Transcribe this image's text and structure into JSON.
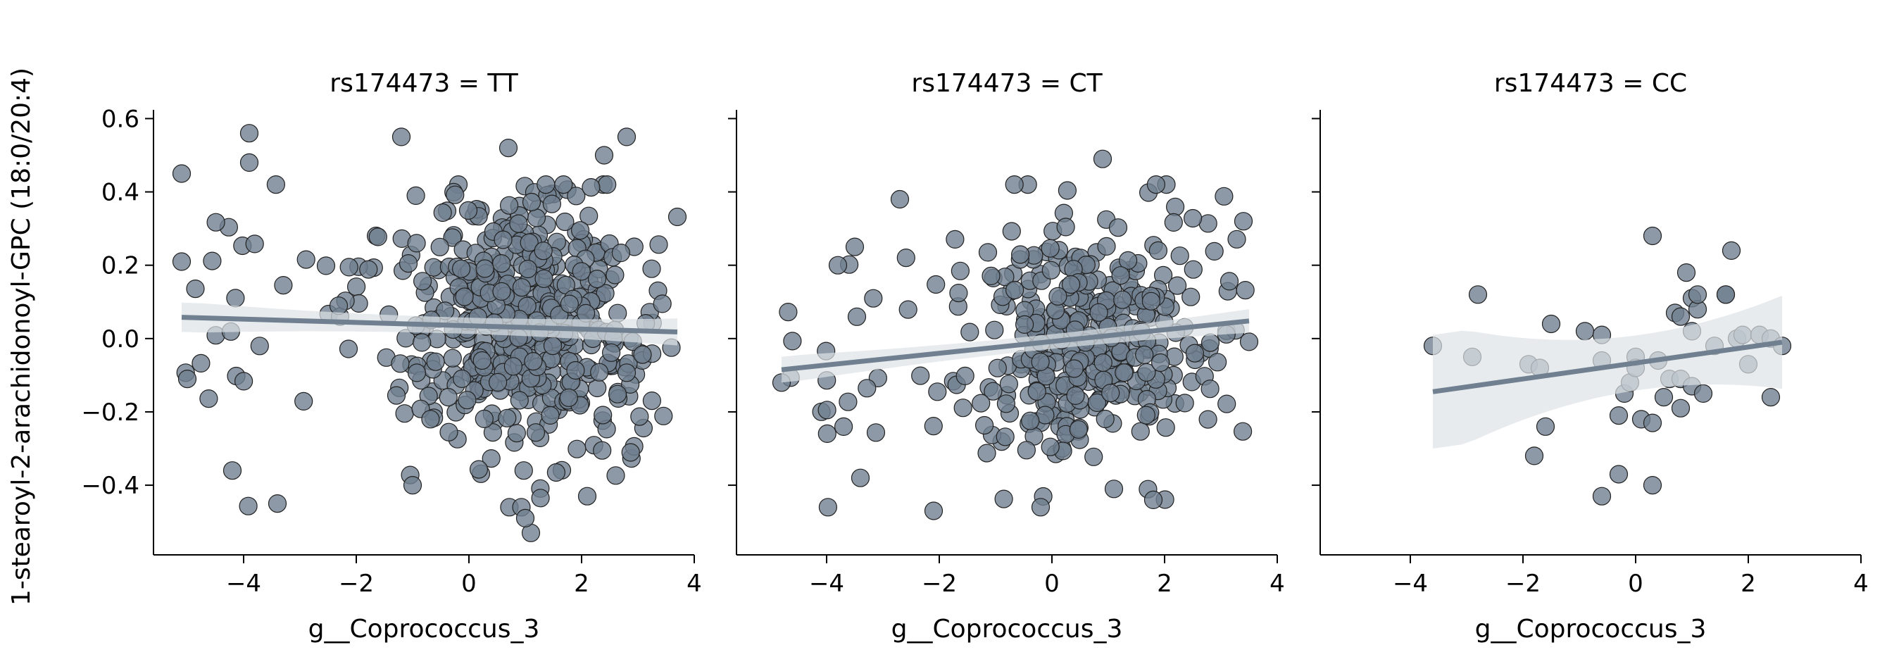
{
  "chart_data": {
    "type": "scatter",
    "ylabel": "1-stearoyl-2-arachidonoyl-GPC (18:0/20:4)",
    "xlim": [
      -5.6,
      4.0
    ],
    "ylim": [
      -0.59,
      0.62
    ],
    "x_ticks": [
      -4,
      -2,
      0,
      2,
      4
    ],
    "y_ticks": [
      -0.4,
      -0.2,
      0.0,
      0.2,
      0.4,
      0.6
    ],
    "y_tick_labels": [
      "−0.4",
      "−0.2",
      "0.0",
      "0.2",
      "0.4",
      "0.6"
    ],
    "x_tick_labels": [
      "−4",
      "−2",
      "0",
      "2",
      "4"
    ],
    "colors": {
      "point": "#708090",
      "edge": "#222222",
      "line": "#708090",
      "band": "#dde2e7"
    },
    "panels": [
      {
        "title": "rs174473 = TT",
        "xlabel": "g__Coprococcus_3",
        "n_points": 520,
        "x_range": [
          -5.1,
          3.7
        ],
        "cluster": [
          0.9,
          0.85
        ],
        "noise_sd": 0.18,
        "regression": {
          "x": [
            -5.1,
            3.7
          ],
          "y": [
            0.058,
            0.018
          ]
        },
        "band_width": [
          0.04,
          0.022
        ],
        "outliers": [
          [
            -5.1,
            0.45
          ],
          [
            -5.1,
            0.21
          ],
          [
            -3.9,
            0.56
          ],
          [
            -3.9,
            0.48
          ],
          [
            -1.2,
            0.55
          ],
          [
            2.8,
            0.55
          ],
          [
            1.1,
            -0.53
          ],
          [
            1.0,
            -0.49
          ],
          [
            -3.4,
            -0.45
          ],
          [
            2.1,
            -0.43
          ],
          [
            -1.0,
            -0.4
          ],
          [
            -4.2,
            -0.36
          ],
          [
            -5.0,
            -0.11
          ],
          [
            0.7,
            0.52
          ],
          [
            2.4,
            0.5
          ]
        ]
      },
      {
        "title": "rs174473 = CT",
        "xlabel": "g__Coprococcus_3",
        "n_points": 380,
        "x_range": [
          -4.8,
          3.5
        ],
        "cluster": [
          0.7,
          0.8
        ],
        "noise_sd": 0.17,
        "regression": {
          "x": [
            -4.8,
            3.5
          ],
          "y": [
            -0.085,
            0.048
          ]
        },
        "band_width": [
          0.035,
          0.02
        ],
        "outliers": [
          [
            -2.7,
            0.38
          ],
          [
            3.4,
            0.32
          ],
          [
            0.9,
            0.49
          ],
          [
            -2.1,
            -0.47
          ],
          [
            -0.2,
            -0.46
          ],
          [
            1.1,
            -0.41
          ],
          [
            1.8,
            -0.44
          ],
          [
            -3.4,
            -0.38
          ],
          [
            -4.8,
            -0.12
          ],
          [
            -3.8,
            0.2
          ],
          [
            -3.5,
            0.25
          ]
        ]
      },
      {
        "title": "rs174473 = CC",
        "xlabel": "g__Coprococcus_3",
        "points": [
          [
            -3.6,
            -0.02
          ],
          [
            -2.9,
            -0.05
          ],
          [
            -2.8,
            0.12
          ],
          [
            -1.9,
            -0.07
          ],
          [
            -1.8,
            -0.32
          ],
          [
            -1.7,
            -0.08
          ],
          [
            -1.6,
            -0.24
          ],
          [
            -1.5,
            0.04
          ],
          [
            -0.9,
            0.02
          ],
          [
            -0.6,
            0.01
          ],
          [
            -0.6,
            -0.06
          ],
          [
            -0.6,
            -0.43
          ],
          [
            -0.3,
            -0.21
          ],
          [
            -0.3,
            -0.37
          ],
          [
            -0.2,
            -0.15
          ],
          [
            -0.1,
            -0.12
          ],
          [
            0.0,
            -0.05
          ],
          [
            0.0,
            -0.08
          ],
          [
            0.1,
            -0.22
          ],
          [
            0.3,
            0.28
          ],
          [
            0.3,
            -0.23
          ],
          [
            0.3,
            -0.4
          ],
          [
            0.4,
            -0.06
          ],
          [
            0.5,
            -0.16
          ],
          [
            0.6,
            -0.11
          ],
          [
            0.7,
            0.07
          ],
          [
            0.8,
            0.06
          ],
          [
            0.8,
            -0.11
          ],
          [
            0.8,
            -0.19
          ],
          [
            0.9,
            0.18
          ],
          [
            1.0,
            0.11
          ],
          [
            1.0,
            0.02
          ],
          [
            1.0,
            -0.13
          ],
          [
            1.1,
            0.08
          ],
          [
            1.1,
            0.12
          ],
          [
            1.2,
            -0.15
          ],
          [
            1.4,
            -0.02
          ],
          [
            1.6,
            0.12
          ],
          [
            1.6,
            0.12
          ],
          [
            1.7,
            0.24
          ],
          [
            1.8,
            0.0
          ],
          [
            1.9,
            0.01
          ],
          [
            2.0,
            -0.07
          ],
          [
            2.2,
            0.01
          ],
          [
            2.4,
            0.0
          ],
          [
            2.4,
            -0.16
          ],
          [
            2.6,
            -0.02
          ]
        ],
        "regression": {
          "x": [
            -3.6,
            2.6
          ],
          "y": [
            -0.145,
            -0.01
          ]
        },
        "band_width": [
          0.155,
          0.075
        ]
      }
    ]
  }
}
